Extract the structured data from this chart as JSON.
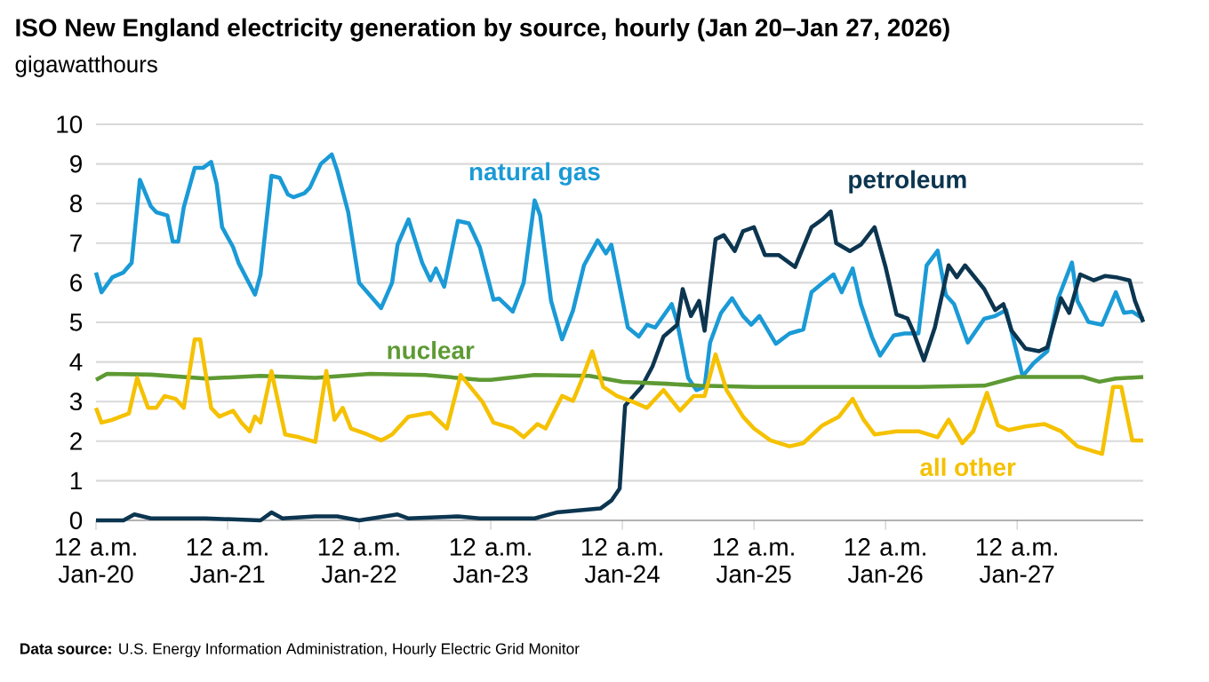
{
  "chart_data": {
    "type": "line",
    "title": "ISO New England electricity generation by source, hourly (Jan 20–Jan 27, 2026)",
    "ylabel": "gigawatthours",
    "annotations": [
      "**Data source:** U.S. Energy Information Administration, Hourly Electric Grid Monitor"
    ],
    "xlim": [
      "2026-01-20T00:00",
      "2026-01-27T23:00"
    ],
    "ylim": [
      0,
      10
    ],
    "yticks": [
      0,
      1,
      2,
      3,
      4,
      5,
      6,
      7,
      8,
      9,
      10
    ],
    "xticks": [
      {
        "value": "2026-01-20T00:00",
        "label": "12 a.m. Jan-20"
      },
      {
        "value": "2026-01-21T00:00",
        "label": "12 a.m. Jan-21"
      },
      {
        "value": "2026-01-22T00:00",
        "label": "12 a.m. Jan-22"
      },
      {
        "value": "2026-01-23T00:00",
        "label": "12 a.m. Jan-23"
      },
      {
        "value": "2026-01-24T00:00",
        "label": "12 a.m. Jan-24"
      },
      {
        "value": "2026-01-25T00:00",
        "label": "12 a.m. Jan-25"
      },
      {
        "value": "2026-01-26T00:00",
        "label": "12 a.m. Jan-26"
      },
      {
        "value": "2026-01-27T00:00",
        "label": "12 a.m. Jan-27"
      }
    ],
    "grid": "y",
    "line_style": "solid",
    "marker": "none",
    "series": [
      {
        "name": "natural gas",
        "color": "#1a9ad6",
        "x": [
          "2026-01-20T00:00",
          "2026-01-20T01:00",
          "2026-01-20T03:00",
          "2026-01-20T05:00",
          "2026-01-20T06:30",
          "2026-01-20T08:00",
          "2026-01-20T10:00",
          "2026-01-20T11:00",
          "2026-01-20T13:00",
          "2026-01-20T14:00",
          "2026-01-20T15:00",
          "2026-01-20T16:00",
          "2026-01-20T18:00",
          "2026-01-20T19:30",
          "2026-01-20T21:00",
          "2026-01-20T22:00",
          "2026-01-20T23:00",
          "2026-01-21T01:00",
          "2026-01-21T02:00",
          "2026-01-21T05:00",
          "2026-01-21T06:00",
          "2026-01-21T08:00",
          "2026-01-21T09:30",
          "2026-01-21T11:00",
          "2026-01-21T12:00",
          "2026-01-21T14:00",
          "2026-01-21T15:00",
          "2026-01-21T17:00",
          "2026-01-21T19:00",
          "2026-01-21T20:00",
          "2026-01-21T22:00",
          "2026-01-22T00:00",
          "2026-01-22T01:00",
          "2026-01-22T04:00",
          "2026-01-22T06:00",
          "2026-01-22T07:00",
          "2026-01-22T09:00",
          "2026-01-22T11:30",
          "2026-01-22T13:00",
          "2026-01-22T14:00",
          "2026-01-22T15:30",
          "2026-01-22T18:00",
          "2026-01-22T20:00",
          "2026-01-22T22:00",
          "2026-01-23T00:30",
          "2026-01-23T01:30",
          "2026-01-23T04:00",
          "2026-01-23T06:00",
          "2026-01-23T08:00",
          "2026-01-23T09:00",
          "2026-01-23T11:00",
          "2026-01-23T13:00",
          "2026-01-23T15:00",
          "2026-01-23T17:00",
          "2026-01-23T19:30",
          "2026-01-23T21:00",
          "2026-01-23T22:00",
          "2026-01-24T01:00",
          "2026-01-24T03:00",
          "2026-01-24T04:30",
          "2026-01-24T06:00",
          "2026-01-24T09:00",
          "2026-01-24T10:00",
          "2026-01-24T12:00",
          "2026-01-24T13:30",
          "2026-01-24T15:00",
          "2026-01-24T16:00",
          "2026-01-24T18:00",
          "2026-01-24T20:00",
          "2026-01-24T22:00",
          "2026-01-24T23:30",
          "2026-01-25T01:00",
          "2026-01-25T04:00",
          "2026-01-25T06:30",
          "2026-01-25T09:00",
          "2026-01-25T10:30",
          "2026-01-25T12:30",
          "2026-01-25T14:30",
          "2026-01-25T16:00",
          "2026-01-25T18:00",
          "2026-01-25T19:30",
          "2026-01-25T21:30",
          "2026-01-25T23:00",
          "2026-01-26T01:30",
          "2026-01-26T03:30",
          "2026-01-26T06:00",
          "2026-01-26T07:30",
          "2026-01-26T09:30",
          "2026-01-26T11:00",
          "2026-01-26T12:30",
          "2026-01-26T15:00",
          "2026-01-26T18:00",
          "2026-01-26T20:00",
          "2026-01-26T22:00",
          "2026-01-27T01:00",
          "2026-01-27T03:00",
          "2026-01-27T05:30",
          "2026-01-27T07:30",
          "2026-01-27T10:00",
          "2026-01-27T11:00",
          "2026-01-27T13:00",
          "2026-01-27T15:30",
          "2026-01-27T18:00",
          "2026-01-27T19:30",
          "2026-01-27T21:00",
          "2026-01-27T23:00"
        ],
        "values": [
          6.26,
          5.76,
          6.14,
          6.26,
          6.5,
          8.6,
          7.93,
          7.78,
          7.7,
          7.04,
          7.04,
          7.9,
          8.9,
          8.9,
          9.05,
          8.5,
          7.4,
          6.9,
          6.5,
          5.7,
          6.2,
          8.7,
          8.65,
          8.23,
          8.16,
          8.26,
          8.4,
          9.0,
          9.24,
          8.83,
          7.78,
          6.0,
          5.84,
          5.36,
          6.0,
          6.96,
          7.6,
          6.5,
          6.06,
          6.36,
          5.9,
          7.56,
          7.5,
          6.9,
          5.57,
          5.6,
          5.27,
          6.0,
          8.08,
          7.7,
          5.54,
          4.57,
          5.3,
          6.44,
          7.07,
          6.74,
          6.96,
          4.87,
          4.64,
          4.94,
          4.87,
          5.46,
          5.0,
          3.6,
          3.29,
          3.37,
          4.49,
          5.24,
          5.61,
          5.16,
          4.94,
          5.16,
          4.46,
          4.72,
          4.82,
          5.76,
          5.99,
          6.21,
          5.76,
          6.36,
          5.46,
          4.64,
          4.16,
          4.67,
          4.72,
          4.72,
          6.44,
          6.81,
          5.69,
          5.46,
          4.49,
          5.09,
          5.16,
          5.31,
          3.64,
          3.97,
          4.27,
          5.61,
          6.51,
          5.54,
          5.01,
          4.94,
          5.76,
          5.24,
          5.27,
          5.09
        ]
      },
      {
        "name": "petroleum",
        "color": "#0c3550",
        "x": [
          "2026-01-20T00:00",
          "2026-01-20T05:00",
          "2026-01-20T07:00",
          "2026-01-20T10:00",
          "2026-01-20T20:00",
          "2026-01-21T06:00",
          "2026-01-21T08:00",
          "2026-01-21T10:00",
          "2026-01-21T16:00",
          "2026-01-21T20:00",
          "2026-01-22T00:00",
          "2026-01-22T07:00",
          "2026-01-22T09:00",
          "2026-01-22T18:00",
          "2026-01-22T22:00",
          "2026-01-23T08:00",
          "2026-01-23T12:00",
          "2026-01-23T16:00",
          "2026-01-23T20:00",
          "2026-01-23T22:00",
          "2026-01-23T23:30",
          "2026-01-24T00:30",
          "2026-01-24T03:30",
          "2026-01-24T05:30",
          "2026-01-24T07:30",
          "2026-01-24T10:00",
          "2026-01-24T11:00",
          "2026-01-24T12:30",
          "2026-01-24T14:00",
          "2026-01-24T15:00",
          "2026-01-24T17:00",
          "2026-01-24T18:30",
          "2026-01-24T20:30",
          "2026-01-24T22:00",
          "2026-01-25T00:00",
          "2026-01-25T02:00",
          "2026-01-25T04:30",
          "2026-01-25T07:30",
          "2026-01-25T10:30",
          "2026-01-25T12:30",
          "2026-01-25T14:00",
          "2026-01-25T15:00",
          "2026-01-25T17:30",
          "2026-01-25T19:30",
          "2026-01-25T22:00",
          "2026-01-26T00:00",
          "2026-01-26T02:00",
          "2026-01-26T04:00",
          "2026-01-26T05:00",
          "2026-01-26T07:00",
          "2026-01-26T09:00",
          "2026-01-26T11:30",
          "2026-01-26T13:00",
          "2026-01-26T14:30",
          "2026-01-26T18:00",
          "2026-01-26T20:00",
          "2026-01-26T21:30",
          "2026-01-26T23:00",
          "2026-01-27T01:30",
          "2026-01-27T04:00",
          "2026-01-27T05:30",
          "2026-01-27T08:00",
          "2026-01-27T09:30",
          "2026-01-27T11:30",
          "2026-01-27T14:00",
          "2026-01-27T16:00",
          "2026-01-27T18:00",
          "2026-01-27T20:30",
          "2026-01-27T21:30",
          "2026-01-27T23:00"
        ],
        "values": [
          0,
          0,
          0.15,
          0.05,
          0.05,
          0,
          0.2,
          0.05,
          0.1,
          0.1,
          0,
          0.15,
          0.05,
          0.1,
          0.05,
          0.05,
          0.2,
          0.25,
          0.3,
          0.5,
          0.8,
          2.9,
          3.37,
          3.89,
          4.64,
          4.94,
          5.84,
          5.16,
          5.54,
          4.79,
          7.1,
          7.2,
          6.8,
          7.3,
          7.4,
          6.7,
          6.7,
          6.4,
          7.4,
          7.6,
          7.8,
          7.0,
          6.8,
          6.96,
          7.4,
          6.4,
          5.2,
          5.1,
          4.79,
          4.04,
          4.87,
          6.44,
          6.14,
          6.44,
          5.84,
          5.31,
          5.46,
          4.79,
          4.34,
          4.27,
          4.37,
          5.61,
          5.24,
          6.21,
          6.06,
          6.17,
          6.14,
          6.06,
          5.54,
          5.01
        ]
      },
      {
        "name": "nuclear",
        "color": "#5e9a34",
        "x": [
          "2026-01-20T00:00",
          "2026-01-20T02:00",
          "2026-01-20T10:00",
          "2026-01-20T20:00",
          "2026-01-21T06:00",
          "2026-01-21T16:00",
          "2026-01-22T02:00",
          "2026-01-22T12:00",
          "2026-01-22T22:00",
          "2026-01-23T00:00",
          "2026-01-23T08:00",
          "2026-01-23T18:00",
          "2026-01-24T00:00",
          "2026-01-24T08:00",
          "2026-01-24T14:00",
          "2026-01-25T00:00",
          "2026-01-25T20:00",
          "2026-01-26T06:00",
          "2026-01-26T18:00",
          "2026-01-27T00:00",
          "2026-01-27T12:00",
          "2026-01-27T15:00",
          "2026-01-27T18:00",
          "2026-01-27T23:00"
        ],
        "values": [
          3.55,
          3.7,
          3.68,
          3.58,
          3.65,
          3.6,
          3.7,
          3.67,
          3.55,
          3.55,
          3.67,
          3.65,
          3.5,
          3.45,
          3.4,
          3.37,
          3.37,
          3.37,
          3.4,
          3.62,
          3.62,
          3.5,
          3.58,
          3.62
        ]
      },
      {
        "name": "all other",
        "color": "#f5c100",
        "x": [
          "2026-01-20T00:00",
          "2026-01-20T01:00",
          "2026-01-20T03:00",
          "2026-01-20T06:00",
          "2026-01-20T07:30",
          "2026-01-20T09:30",
          "2026-01-20T11:00",
          "2026-01-20T12:30",
          "2026-01-20T14:30",
          "2026-01-20T16:00",
          "2026-01-20T18:00",
          "2026-01-20T19:00",
          "2026-01-20T21:00",
          "2026-01-20T22:30",
          "2026-01-21T01:00",
          "2026-01-21T02:30",
          "2026-01-21T04:00",
          "2026-01-21T05:00",
          "2026-01-21T06:00",
          "2026-01-21T08:00",
          "2026-01-21T10:30",
          "2026-01-21T13:00",
          "2026-01-21T16:00",
          "2026-01-21T18:00",
          "2026-01-21T19:30",
          "2026-01-21T21:00",
          "2026-01-21T22:30",
          "2026-01-22T01:30",
          "2026-01-22T04:00",
          "2026-01-22T06:00",
          "2026-01-22T09:00",
          "2026-01-22T13:00",
          "2026-01-22T16:00",
          "2026-01-22T18:30",
          "2026-01-22T22:30",
          "2026-01-23T00:30",
          "2026-01-23T04:00",
          "2026-01-23T06:00",
          "2026-01-23T08:30",
          "2026-01-23T10:00",
          "2026-01-23T13:00",
          "2026-01-23T15:00",
          "2026-01-23T16:30",
          "2026-01-23T18:30",
          "2026-01-23T20:30",
          "2026-01-23T23:00",
          "2026-01-24T02:00",
          "2026-01-24T04:30",
          "2026-01-24T07:30",
          "2026-01-24T10:30",
          "2026-01-24T13:00",
          "2026-01-24T15:00",
          "2026-01-24T17:00",
          "2026-01-24T19:00",
          "2026-01-24T22:00",
          "2026-01-25T00:00",
          "2026-01-25T03:00",
          "2026-01-25T06:30",
          "2026-01-25T09:00",
          "2026-01-25T12:30",
          "2026-01-25T15:30",
          "2026-01-25T18:00",
          "2026-01-25T20:00",
          "2026-01-25T22:00",
          "2026-01-26T02:00",
          "2026-01-26T06:00",
          "2026-01-26T09:30",
          "2026-01-26T11:30",
          "2026-01-26T14:00",
          "2026-01-26T16:00",
          "2026-01-26T18:30",
          "2026-01-26T20:30",
          "2026-01-26T22:30",
          "2026-01-27T01:30",
          "2026-01-27T05:00",
          "2026-01-27T08:00",
          "2026-01-27T11:00",
          "2026-01-27T15:30",
          "2026-01-27T17:30",
          "2026-01-27T19:00",
          "2026-01-27T21:00",
          "2026-01-27T23:00"
        ],
        "values": [
          2.84,
          2.47,
          2.54,
          2.7,
          3.6,
          2.84,
          2.84,
          3.14,
          3.07,
          2.84,
          4.57,
          4.57,
          2.84,
          2.62,
          2.77,
          2.47,
          2.25,
          2.62,
          2.47,
          3.77,
          2.17,
          2.1,
          1.98,
          3.77,
          2.54,
          2.84,
          2.32,
          2.17,
          2.02,
          2.17,
          2.62,
          2.72,
          2.32,
          3.67,
          2.99,
          2.47,
          2.32,
          2.1,
          2.43,
          2.32,
          3.14,
          3.02,
          3.52,
          4.27,
          3.37,
          3.14,
          2.99,
          2.84,
          3.29,
          2.77,
          3.14,
          3.14,
          4.19,
          3.29,
          2.62,
          2.32,
          2.02,
          1.87,
          1.95,
          2.4,
          2.62,
          3.07,
          2.54,
          2.17,
          2.25,
          2.25,
          2.1,
          2.54,
          1.95,
          2.25,
          3.22,
          2.4,
          2.28,
          2.37,
          2.43,
          2.25,
          1.87,
          1.68,
          3.37,
          3.37,
          2.02,
          2.02
        ]
      }
    ]
  }
}
